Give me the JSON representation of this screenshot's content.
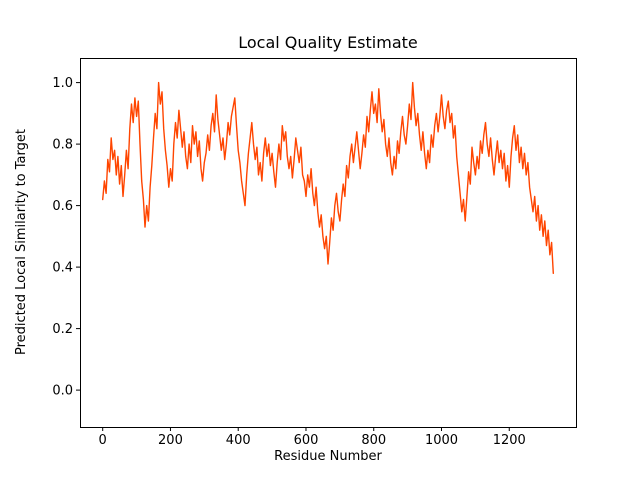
{
  "chart_data": {
    "type": "line",
    "title": "Local Quality Estimate",
    "xlabel": "Residue Number",
    "ylabel": "Predicted Local Similarity to Target",
    "line_color": "#FF4500",
    "axes_color": "#000000",
    "background_color": "#FFFFFF",
    "grid": false,
    "legend": "none",
    "xlim": [
      -67,
      1397
    ],
    "ylim": [
      -0.12,
      1.08
    ],
    "xticks": [
      0,
      200,
      400,
      600,
      800,
      1000,
      1200
    ],
    "xtick_labels": [
      "0",
      "200",
      "400",
      "600",
      "800",
      "1000",
      "1200"
    ],
    "yticks": [
      0.0,
      0.2,
      0.4,
      0.6,
      0.8,
      1.0
    ],
    "ytick_labels": [
      "0.0",
      "0.2",
      "0.4",
      "0.6",
      "0.8",
      "1.0"
    ],
    "x_start": 0,
    "x_step": 5,
    "x_end": 1330,
    "values": [
      0.62,
      0.68,
      0.64,
      0.75,
      0.71,
      0.82,
      0.75,
      0.78,
      0.7,
      0.76,
      0.67,
      0.73,
      0.63,
      0.7,
      0.78,
      0.72,
      0.85,
      0.93,
      0.87,
      0.95,
      0.89,
      0.94,
      0.8,
      0.68,
      0.62,
      0.53,
      0.6,
      0.55,
      0.66,
      0.73,
      0.82,
      0.9,
      0.85,
      1.0,
      0.93,
      0.97,
      0.85,
      0.78,
      0.73,
      0.66,
      0.72,
      0.68,
      0.8,
      0.87,
      0.82,
      0.91,
      0.85,
      0.79,
      0.84,
      0.76,
      0.72,
      0.8,
      0.74,
      0.86,
      0.8,
      0.84,
      0.76,
      0.81,
      0.72,
      0.68,
      0.74,
      0.77,
      0.83,
      0.78,
      0.86,
      0.9,
      0.84,
      0.96,
      0.88,
      0.83,
      0.78,
      0.82,
      0.75,
      0.8,
      0.87,
      0.83,
      0.89,
      0.92,
      0.95,
      0.86,
      0.78,
      0.74,
      0.68,
      0.64,
      0.6,
      0.7,
      0.77,
      0.82,
      0.87,
      0.8,
      0.75,
      0.79,
      0.7,
      0.74,
      0.68,
      0.77,
      0.82,
      0.76,
      0.8,
      0.73,
      0.77,
      0.71,
      0.66,
      0.74,
      0.8,
      0.75,
      0.86,
      0.81,
      0.84,
      0.76,
      0.72,
      0.76,
      0.69,
      0.75,
      0.82,
      0.78,
      0.74,
      0.79,
      0.7,
      0.68,
      0.63,
      0.7,
      0.66,
      0.72,
      0.64,
      0.6,
      0.66,
      0.58,
      0.53,
      0.57,
      0.5,
      0.46,
      0.5,
      0.41,
      0.48,
      0.56,
      0.52,
      0.6,
      0.64,
      0.58,
      0.55,
      0.62,
      0.67,
      0.63,
      0.73,
      0.69,
      0.76,
      0.8,
      0.74,
      0.79,
      0.84,
      0.78,
      0.72,
      0.77,
      0.83,
      0.79,
      0.89,
      0.84,
      0.91,
      0.97,
      0.9,
      0.93,
      0.87,
      0.98,
      0.9,
      0.84,
      0.88,
      0.8,
      0.76,
      0.82,
      0.74,
      0.7,
      0.76,
      0.72,
      0.81,
      0.77,
      0.84,
      0.89,
      0.83,
      0.8,
      0.86,
      0.93,
      0.88,
      1.0,
      0.92,
      0.86,
      0.9,
      0.83,
      0.78,
      0.84,
      0.77,
      0.72,
      0.78,
      0.74,
      0.83,
      0.79,
      0.86,
      0.9,
      0.84,
      0.89,
      0.96,
      0.89,
      0.85,
      0.91,
      0.94,
      0.87,
      0.9,
      0.82,
      0.86,
      0.76,
      0.7,
      0.64,
      0.58,
      0.62,
      0.55,
      0.63,
      0.71,
      0.67,
      0.79,
      0.74,
      0.7,
      0.76,
      0.72,
      0.81,
      0.77,
      0.83,
      0.87,
      0.8,
      0.76,
      0.82,
      0.75,
      0.7,
      0.76,
      0.81,
      0.74,
      0.78,
      0.72,
      0.77,
      0.68,
      0.73,
      0.66,
      0.76,
      0.82,
      0.86,
      0.78,
      0.83,
      0.74,
      0.79,
      0.72,
      0.77,
      0.7,
      0.74,
      0.66,
      0.62,
      0.58,
      0.63,
      0.55,
      0.6,
      0.52,
      0.57,
      0.5,
      0.55,
      0.47,
      0.52,
      0.44,
      0.48,
      0.38
    ]
  }
}
